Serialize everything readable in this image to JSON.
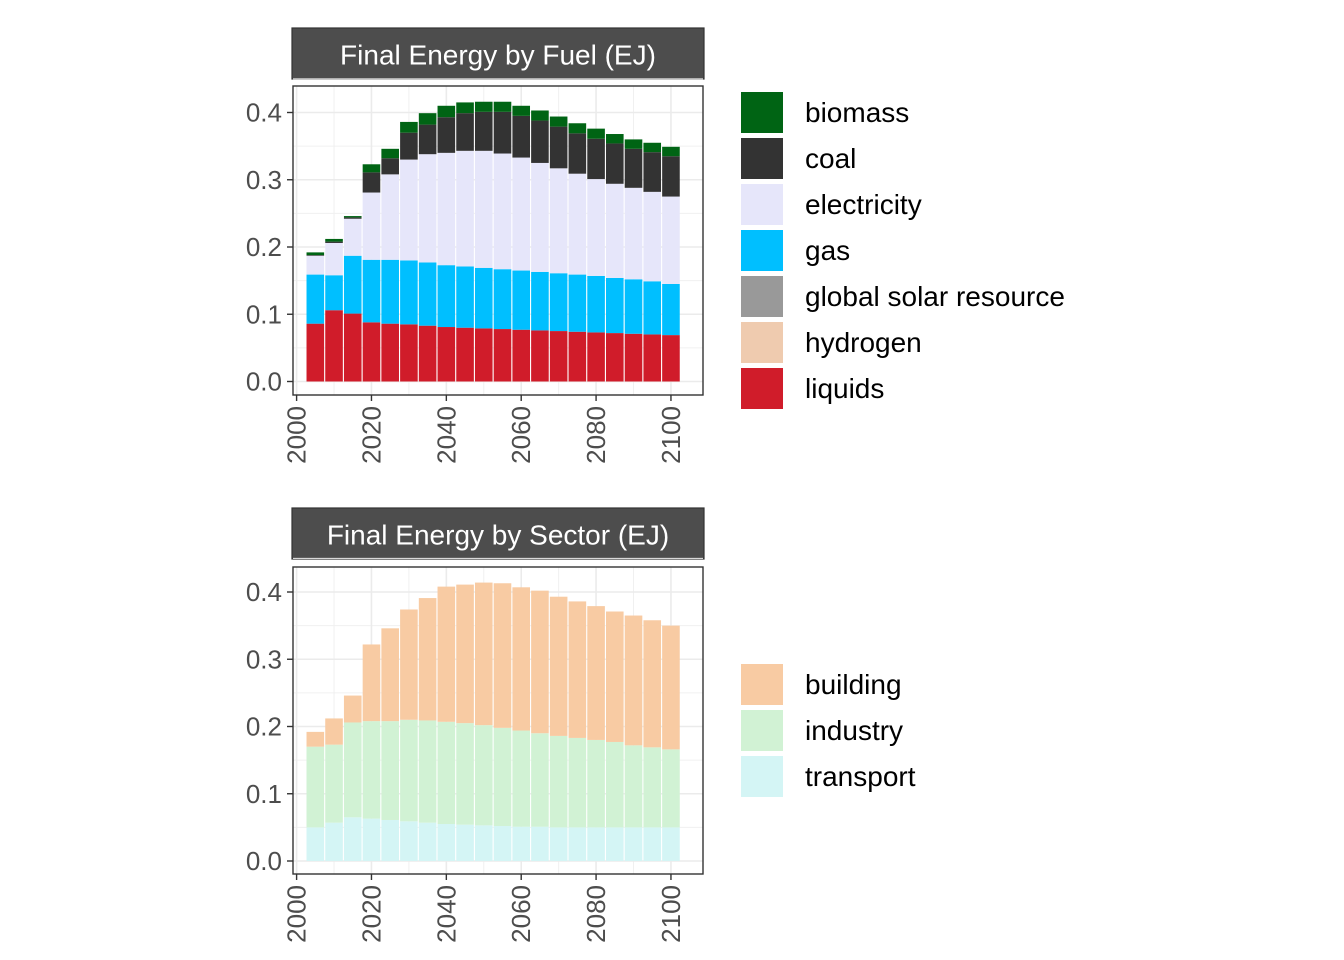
{
  "chart_data": [
    {
      "type": "bar",
      "stacked": true,
      "title": "Final Energy by Fuel (EJ)",
      "xlabel": "",
      "ylabel": "",
      "x": [
        2005,
        2010,
        2015,
        2020,
        2025,
        2030,
        2035,
        2040,
        2045,
        2050,
        2055,
        2060,
        2065,
        2070,
        2075,
        2080,
        2085,
        2090,
        2095,
        2100
      ],
      "xlim": [
        2000,
        2100
      ],
      "ylim": [
        0,
        0.4
      ],
      "xticks": [
        "2000",
        "2020",
        "2040",
        "2060",
        "2080",
        "2100"
      ],
      "yticks": [
        "0.0",
        "0.1",
        "0.2",
        "0.3",
        "0.4"
      ],
      "grid": true,
      "legend_position": "right",
      "series": [
        {
          "name": "liquids",
          "color": "#d01c2a",
          "values": [
            0.086,
            0.106,
            0.101,
            0.088,
            0.086,
            0.085,
            0.083,
            0.081,
            0.08,
            0.079,
            0.078,
            0.077,
            0.076,
            0.075,
            0.074,
            0.073,
            0.072,
            0.071,
            0.07,
            0.069
          ]
        },
        {
          "name": "hydrogen",
          "color": "#efcbaf",
          "values": [
            0,
            0,
            0,
            0,
            0,
            0,
            0,
            0,
            0,
            0,
            0,
            0,
            0,
            0,
            0,
            0,
            0,
            0,
            0,
            0
          ]
        },
        {
          "name": "global solar resource",
          "color": "#999999",
          "values": [
            0,
            0,
            0,
            0,
            0,
            0,
            0,
            0,
            0,
            0,
            0,
            0,
            0,
            0,
            0,
            0,
            0,
            0,
            0,
            0
          ]
        },
        {
          "name": "gas",
          "color": "#00bfff",
          "values": [
            0.073,
            0.052,
            0.086,
            0.093,
            0.095,
            0.095,
            0.094,
            0.092,
            0.091,
            0.09,
            0.089,
            0.088,
            0.087,
            0.086,
            0.085,
            0.084,
            0.082,
            0.081,
            0.079,
            0.076
          ]
        },
        {
          "name": "electricity",
          "color": "#e6e6fa",
          "values": [
            0.028,
            0.048,
            0.055,
            0.1,
            0.127,
            0.15,
            0.161,
            0.167,
            0.172,
            0.174,
            0.172,
            0.168,
            0.162,
            0.156,
            0.15,
            0.144,
            0.14,
            0.136,
            0.133,
            0.13
          ]
        },
        {
          "name": "coal",
          "color": "#333333",
          "values": [
            0.001,
            0.002,
            0.002,
            0.03,
            0.024,
            0.04,
            0.044,
            0.053,
            0.056,
            0.058,
            0.062,
            0.062,
            0.063,
            0.062,
            0.06,
            0.06,
            0.06,
            0.058,
            0.059,
            0.06
          ]
        },
        {
          "name": "biomass",
          "color": "#006414",
          "values": [
            0.004,
            0.004,
            0.002,
            0.012,
            0.014,
            0.016,
            0.017,
            0.017,
            0.016,
            0.015,
            0.015,
            0.015,
            0.015,
            0.015,
            0.015,
            0.015,
            0.014,
            0.014,
            0.014,
            0.014
          ]
        }
      ],
      "legend_order": [
        "biomass",
        "coal",
        "electricity",
        "gas",
        "global solar resource",
        "hydrogen",
        "liquids"
      ]
    },
    {
      "type": "bar",
      "stacked": true,
      "title": "Final Energy by Sector (EJ)",
      "xlabel": "",
      "ylabel": "",
      "x": [
        2005,
        2010,
        2015,
        2020,
        2025,
        2030,
        2035,
        2040,
        2045,
        2050,
        2055,
        2060,
        2065,
        2070,
        2075,
        2080,
        2085,
        2090,
        2095,
        2100
      ],
      "xlim": [
        2000,
        2100
      ],
      "ylim": [
        0,
        0.4
      ],
      "xticks": [
        "2000",
        "2020",
        "2040",
        "2060",
        "2080",
        "2100"
      ],
      "yticks": [
        "0.0",
        "0.1",
        "0.2",
        "0.3",
        "0.4"
      ],
      "grid": true,
      "legend_position": "right",
      "series": [
        {
          "name": "transport",
          "color": "#d4f5f5",
          "values": [
            0.05,
            0.057,
            0.065,
            0.063,
            0.061,
            0.059,
            0.057,
            0.055,
            0.054,
            0.053,
            0.052,
            0.051,
            0.051,
            0.05,
            0.05,
            0.05,
            0.05,
            0.05,
            0.05,
            0.05
          ]
        },
        {
          "name": "industry",
          "color": "#d1f2d4",
          "values": [
            0.12,
            0.116,
            0.141,
            0.145,
            0.147,
            0.151,
            0.152,
            0.152,
            0.151,
            0.149,
            0.146,
            0.143,
            0.139,
            0.136,
            0.133,
            0.13,
            0.127,
            0.122,
            0.119,
            0.116
          ]
        },
        {
          "name": "building",
          "color": "#f8cba3",
          "values": [
            0.022,
            0.039,
            0.04,
            0.114,
            0.138,
            0.164,
            0.182,
            0.201,
            0.206,
            0.212,
            0.215,
            0.213,
            0.212,
            0.207,
            0.203,
            0.199,
            0.194,
            0.193,
            0.189,
            0.184
          ]
        }
      ],
      "legend_order": [
        "building",
        "industry",
        "transport"
      ]
    }
  ]
}
